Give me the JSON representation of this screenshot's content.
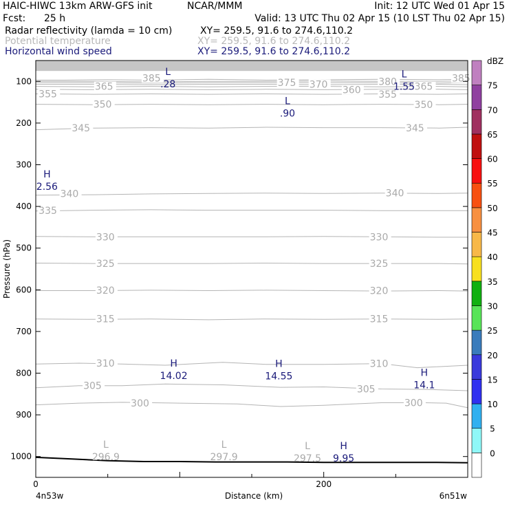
{
  "header": {
    "model": "HAIC-HIWC 13km ARW-GFS init",
    "org": "NCAR/MMM",
    "init": "Init: 12 UTC Wed 01 Apr 15",
    "fcst_label": "Fcst:",
    "fcst_value": "25 h",
    "valid": "Valid: 13 UTC Thu 02 Apr 15 (10 LST Thu 02 Apr 15)",
    "fields": [
      {
        "name": "Radar reflectivity (lamda = 10 cm)",
        "xy": "XY= 259.5, 91.6 to 274.6,110.2"
      },
      {
        "name": "Potential temperature",
        "xy": "XY= 259.5, 91.6 to 274.6,110.2"
      },
      {
        "name": "Horizontal wind speed",
        "xy": "XY= 259.5, 91.6 to 274.6,110.2"
      }
    ]
  },
  "chart_data": {
    "type": "cross-section",
    "ylabel": "Pressure (hPa)",
    "xlabel": "Distance (km)",
    "x_left_label": "4n53w",
    "x_right_label": "6n51w",
    "xlim": [
      0,
      300
    ],
    "x_ticks": [
      {
        "value": 0,
        "label": "0"
      },
      {
        "value": 200,
        "label": "200"
      }
    ],
    "ylim": [
      50,
      1050
    ],
    "y_ticks": [
      100,
      200,
      300,
      400,
      500,
      600,
      700,
      800,
      900,
      1000
    ],
    "colorbar": {
      "unit": "dBZ",
      "levels": [
        "0",
        "5",
        "10",
        "15",
        "20",
        "25",
        "30",
        "35",
        "40",
        "45",
        "50",
        "55",
        "60",
        "65",
        "70",
        "75"
      ],
      "colors": [
        "#ffffff",
        "#8ff8f8",
        "#30b0f0",
        "#3030f0",
        "#3a3adc",
        "#3a7cbc",
        "#58e458",
        "#10b010",
        "#f8e020",
        "#f8b848",
        "#f89040",
        "#f85010",
        "#f81010",
        "#c01010",
        "#a03060",
        "#9040a0",
        "#c080c0"
      ]
    },
    "theta_contours": [
      {
        "label": "385",
        "points": [
          [
            0,
            97
          ],
          [
            20,
            97
          ],
          [
            50,
            96
          ],
          [
            80,
            97
          ],
          [
            120,
            95
          ],
          [
            160,
            97
          ],
          [
            200,
            96
          ],
          [
            240,
            95
          ],
          [
            280,
            96
          ],
          [
            300,
            95
          ]
        ]
      },
      {
        "label": "380",
        "points": [
          [
            0,
            100
          ],
          [
            40,
            100
          ],
          [
            80,
            101
          ],
          [
            120,
            100
          ],
          [
            160,
            100
          ],
          [
            200,
            99
          ],
          [
            240,
            100
          ],
          [
            280,
            100
          ],
          [
            300,
            99
          ]
        ]
      },
      {
        "label": "375",
        "points": [
          [
            0,
            103
          ],
          [
            40,
            103
          ],
          [
            80,
            104
          ],
          [
            120,
            103
          ],
          [
            160,
            103
          ],
          [
            200,
            103
          ],
          [
            240,
            103
          ],
          [
            280,
            104
          ],
          [
            300,
            103
          ]
        ]
      },
      {
        "label": "370",
        "points": [
          [
            0,
            107
          ],
          [
            40,
            107
          ],
          [
            80,
            108
          ],
          [
            120,
            107
          ],
          [
            160,
            107
          ],
          [
            200,
            108
          ],
          [
            240,
            107
          ],
          [
            280,
            107
          ],
          [
            300,
            108
          ]
        ]
      },
      {
        "label": "365",
        "points": [
          [
            0,
            112
          ],
          [
            40,
            113
          ],
          [
            80,
            112
          ],
          [
            120,
            113
          ],
          [
            160,
            112
          ],
          [
            200,
            112
          ],
          [
            240,
            113
          ],
          [
            280,
            112
          ],
          [
            300,
            113
          ]
        ]
      },
      {
        "label": "360",
        "points": [
          [
            0,
            119
          ],
          [
            40,
            120
          ],
          [
            80,
            119
          ],
          [
            120,
            120
          ],
          [
            160,
            119
          ],
          [
            200,
            120
          ],
          [
            240,
            119
          ],
          [
            280,
            119
          ],
          [
            300,
            120
          ]
        ]
      },
      {
        "label": "355",
        "points": [
          [
            0,
            130
          ],
          [
            40,
            131
          ],
          [
            80,
            130
          ],
          [
            120,
            131
          ],
          [
            160,
            130
          ],
          [
            200,
            131
          ],
          [
            240,
            130
          ],
          [
            280,
            131
          ],
          [
            300,
            130
          ]
        ]
      },
      {
        "label": "350",
        "points": [
          [
            0,
            155
          ],
          [
            40,
            156
          ],
          [
            80,
            155
          ],
          [
            120,
            156
          ],
          [
            160,
            155
          ],
          [
            200,
            156
          ],
          [
            240,
            155
          ],
          [
            280,
            156
          ],
          [
            300,
            155
          ]
        ]
      },
      {
        "label": "345",
        "points": [
          [
            0,
            216
          ],
          [
            40,
            212
          ],
          [
            80,
            211
          ],
          [
            120,
            212
          ],
          [
            160,
            210
          ],
          [
            200,
            211
          ],
          [
            240,
            211
          ],
          [
            280,
            212
          ],
          [
            300,
            210
          ]
        ]
      },
      {
        "label": "340",
        "points": [
          [
            0,
            373
          ],
          [
            40,
            372
          ],
          [
            80,
            370
          ],
          [
            120,
            369
          ],
          [
            160,
            368
          ],
          [
            200,
            369
          ],
          [
            240,
            368
          ],
          [
            280,
            369
          ],
          [
            300,
            368
          ]
        ]
      },
      {
        "label": "335",
        "points": [
          [
            0,
            411
          ],
          [
            40,
            409
          ],
          [
            80,
            408
          ],
          [
            120,
            409
          ],
          [
            160,
            409
          ],
          [
            200,
            409
          ],
          [
            240,
            410
          ],
          [
            280,
            410
          ],
          [
            300,
            410
          ]
        ]
      },
      {
        "label": "330",
        "points": [
          [
            0,
            472
          ],
          [
            40,
            473
          ],
          [
            80,
            473
          ],
          [
            120,
            473
          ],
          [
            160,
            473
          ],
          [
            200,
            472
          ],
          [
            240,
            473
          ],
          [
            280,
            474
          ],
          [
            300,
            474
          ]
        ]
      },
      {
        "label": "325",
        "points": [
          [
            0,
            536
          ],
          [
            40,
            537
          ],
          [
            80,
            537
          ],
          [
            120,
            537
          ],
          [
            160,
            536
          ],
          [
            200,
            537
          ],
          [
            240,
            537
          ],
          [
            280,
            537
          ],
          [
            300,
            538
          ]
        ]
      },
      {
        "label": "320",
        "points": [
          [
            0,
            602
          ],
          [
            40,
            602
          ],
          [
            80,
            601
          ],
          [
            120,
            602
          ],
          [
            160,
            601
          ],
          [
            200,
            602
          ],
          [
            240,
            603
          ],
          [
            280,
            602
          ],
          [
            300,
            603
          ]
        ]
      },
      {
        "label": "315",
        "points": [
          [
            0,
            670
          ],
          [
            40,
            671
          ],
          [
            80,
            670
          ],
          [
            120,
            672
          ],
          [
            160,
            670
          ],
          [
            200,
            671
          ],
          [
            240,
            670
          ],
          [
            280,
            671
          ],
          [
            300,
            670
          ]
        ]
      },
      {
        "label": "310",
        "points": [
          [
            0,
            778
          ],
          [
            30,
            776
          ],
          [
            60,
            778
          ],
          [
            90,
            781
          ],
          [
            130,
            774
          ],
          [
            160,
            779
          ],
          [
            200,
            779
          ],
          [
            240,
            777
          ],
          [
            265,
            787
          ],
          [
            300,
            781
          ]
        ]
      },
      {
        "label": "305",
        "points": [
          [
            0,
            835
          ],
          [
            30,
            830
          ],
          [
            60,
            830
          ],
          [
            90,
            826
          ],
          [
            130,
            828
          ],
          [
            170,
            834
          ],
          [
            200,
            833
          ],
          [
            240,
            838
          ],
          [
            270,
            839
          ],
          [
            300,
            842
          ]
        ]
      },
      {
        "label": "300",
        "points": [
          [
            0,
            876
          ],
          [
            30,
            872
          ],
          [
            60,
            870
          ],
          [
            100,
            872
          ],
          [
            140,
            874
          ],
          [
            170,
            880
          ],
          [
            200,
            877
          ],
          [
            240,
            871
          ],
          [
            270,
            871
          ],
          [
            285,
            872
          ],
          [
            300,
            883
          ]
        ]
      }
    ],
    "theta_labels": [
      {
        "text": "385",
        "x": 74,
        "p": 92
      },
      {
        "text": "385",
        "x": 289,
        "p": 92
      },
      {
        "text": "380",
        "x": 238,
        "p": 100
      },
      {
        "text": "375",
        "x": 168,
        "p": 103
      },
      {
        "text": "370",
        "x": 190,
        "p": 107
      },
      {
        "text": "365",
        "x": 41,
        "p": 112
      },
      {
        "text": "365",
        "x": 263,
        "p": 112
      },
      {
        "text": "360",
        "x": 213,
        "p": 120
      },
      {
        "text": "355",
        "x": 2,
        "p": 130
      },
      {
        "text": "355",
        "x": 238,
        "p": 131
      },
      {
        "text": "350",
        "x": 40,
        "p": 155
      },
      {
        "text": "350",
        "x": 263,
        "p": 156
      },
      {
        "text": "345",
        "x": 25,
        "p": 212
      },
      {
        "text": "345",
        "x": 257,
        "p": 212
      },
      {
        "text": "340",
        "x": 17,
        "p": 369
      },
      {
        "text": "340",
        "x": 243,
        "p": 368
      },
      {
        "text": "335",
        "x": 2,
        "p": 410
      },
      {
        "text": "330",
        "x": 42,
        "p": 473
      },
      {
        "text": "330",
        "x": 232,
        "p": 473
      },
      {
        "text": "325",
        "x": 42,
        "p": 537
      },
      {
        "text": "325",
        "x": 232,
        "p": 537
      },
      {
        "text": "320",
        "x": 42,
        "p": 601
      },
      {
        "text": "320",
        "x": 232,
        "p": 602
      },
      {
        "text": "315",
        "x": 42,
        "p": 670
      },
      {
        "text": "315",
        "x": 232,
        "p": 670
      },
      {
        "text": "310",
        "x": 42,
        "p": 776
      },
      {
        "text": "310",
        "x": 232,
        "p": 777
      },
      {
        "text": "305",
        "x": 33,
        "p": 830
      },
      {
        "text": "305",
        "x": 223,
        "p": 838
      },
      {
        "text": "300",
        "x": 66,
        "p": 872
      },
      {
        "text": "300",
        "x": 256,
        "p": 871
      }
    ],
    "theta_extrema": [
      {
        "letter": "L",
        "value": "296.9",
        "x": 42,
        "p": 991
      },
      {
        "letter": "L",
        "value": "297.9",
        "x": 124,
        "p": 991
      },
      {
        "letter": "L",
        "value": "297.5",
        "x": 182,
        "p": 994
      }
    ],
    "wind_extrema": [
      {
        "letter": "L",
        "value": ".28",
        "x": 88,
        "p": 96
      },
      {
        "letter": "L",
        "value": "1.55",
        "x": 252,
        "p": 102
      },
      {
        "letter": "L",
        "value": ".90",
        "x": 171,
        "p": 166
      },
      {
        "letter": "H",
        "value": "2.56",
        "x": 4,
        "p": 342
      },
      {
        "letter": "H",
        "value": "14.02",
        "x": 92,
        "p": 796
      },
      {
        "letter": "H",
        "value": "14.55",
        "x": 165,
        "p": 797
      },
      {
        "letter": "H",
        "value": "14.1",
        "x": 266,
        "p": 818
      },
      {
        "letter": "H",
        "value": "9.95",
        "x": 210,
        "p": 994
      }
    ],
    "terrain": [
      [
        0,
        1002
      ],
      [
        25,
        1006
      ],
      [
        50,
        1010
      ],
      [
        75,
        1012
      ],
      [
        100,
        1012
      ],
      [
        125,
        1013
      ],
      [
        150,
        1013
      ],
      [
        175,
        1013
      ],
      [
        200,
        1014
      ],
      [
        225,
        1014
      ],
      [
        250,
        1014
      ],
      [
        275,
        1014
      ],
      [
        300,
        1015
      ]
    ],
    "top_band_pressure": 75
  }
}
